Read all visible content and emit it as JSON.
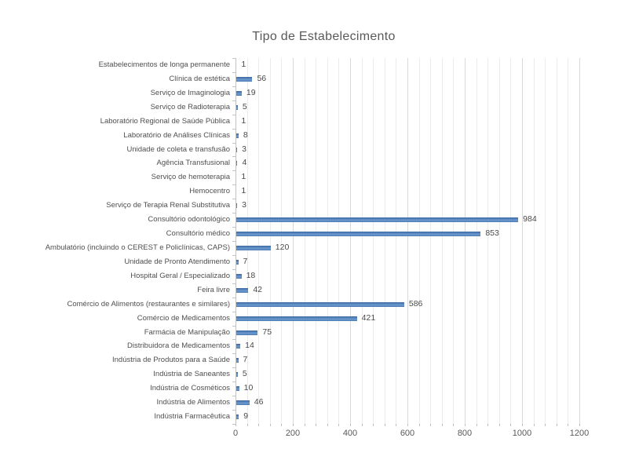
{
  "chart_data": {
    "type": "bar",
    "orientation": "horizontal",
    "title": "Tipo de Estabelecimento",
    "categories": [
      "Estabelecimentos de longa permanente",
      "Clínica de estética",
      "Serviço de Imaginologia",
      "Serviço de Radioterapia",
      "Laboratório Regional de Saúde Pública",
      "Laboratório de Análises Clínicas",
      "Unidade de coleta e transfusão",
      "Agência Transfusional",
      "Serviço de hemoterapia",
      "Hemocentro",
      "Serviço de Terapia Renal Substitutiva",
      "Consultório odontológico",
      "Consultório médico",
      "Ambulatório (incluindo o CEREST e Policlínicas, CAPS)",
      "Unidade de Pronto Atendimento",
      "Hospital Geral / Especializado",
      "Feira livre",
      "Comércio de Alimentos (restaurantes e similares)",
      "Comércio de Medicamentos",
      "Farmácia de Manipulação",
      "Distribuidora de Medicamentos",
      "Indústria de Produtos para a Saúde",
      "Indústria de Saneantes",
      "Indústria de Cosméticos",
      "Indústria de Alimentos",
      "Indústria Farmacêutica"
    ],
    "values": [
      1,
      56,
      19,
      5,
      1,
      8,
      3,
      4,
      1,
      1,
      3,
      984,
      853,
      120,
      7,
      18,
      42,
      586,
      421,
      75,
      14,
      7,
      5,
      10,
      46,
      9
    ],
    "xlabel": "",
    "ylabel": "",
    "xlim": [
      0,
      1200
    ],
    "x_tick_labels": [
      "0",
      "200",
      "400",
      "600",
      "800",
      "1000",
      "1200"
    ],
    "major_unit": 200,
    "minor_unit": 40,
    "grid": "vertical",
    "legend": "none",
    "data_labels": "outside-end",
    "colors": {
      "bar": "#4F81BD",
      "title_text": "#595959",
      "category_text": "#4f4f4f",
      "value_text": "#4a4a4a",
      "gridline_minor": "#EBEBEB",
      "gridline_major": "#D9D9D9",
      "axis_line": "#C3C3C3"
    }
  }
}
